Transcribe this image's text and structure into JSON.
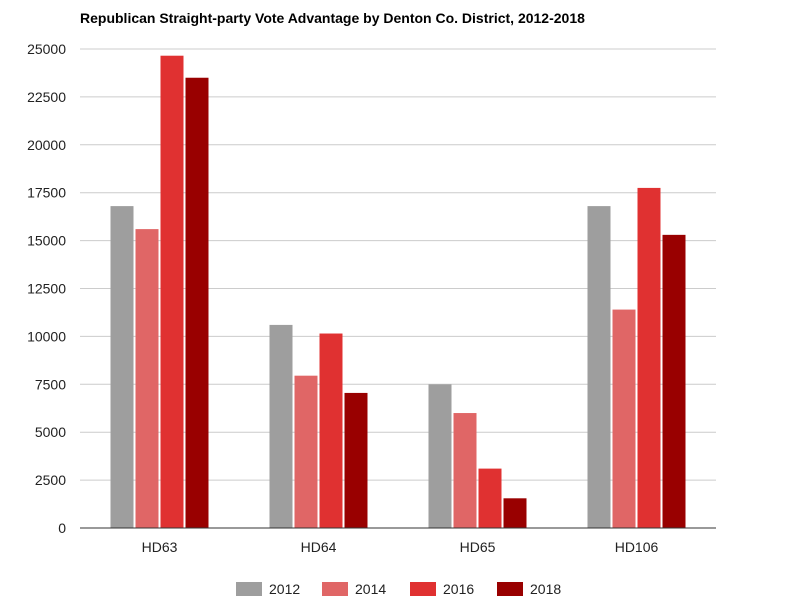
{
  "chart_data": {
    "type": "bar",
    "title": "Republican Straight-party Vote Advantage by Denton Co. District, 2012-2018",
    "xlabel": "",
    "ylabel": "",
    "categories": [
      "HD63",
      "HD64",
      "HD65",
      "HD106"
    ],
    "series": [
      {
        "name": "2012",
        "color": "#9e9e9e",
        "values": [
          16800,
          10600,
          7500,
          16800
        ]
      },
      {
        "name": "2014",
        "color": "#e06666",
        "values": [
          15600,
          7950,
          6000,
          11400
        ]
      },
      {
        "name": "2016",
        "color": "#e03131",
        "values": [
          24650,
          10150,
          3100,
          17750
        ]
      },
      {
        "name": "2018",
        "color": "#990000",
        "values": [
          23500,
          7050,
          1550,
          15300
        ]
      }
    ],
    "ylim": [
      0,
      25000
    ],
    "yticks": [
      0,
      2500,
      5000,
      7500,
      10000,
      12500,
      15000,
      17500,
      20000,
      22500,
      25000
    ],
    "grid": true,
    "legend_position": "bottom"
  }
}
